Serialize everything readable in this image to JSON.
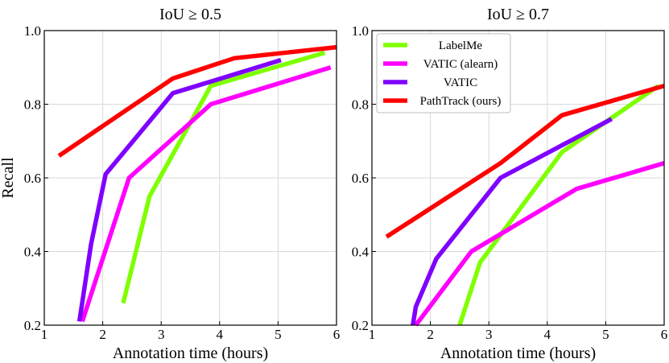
{
  "chart_data": [
    {
      "type": "line",
      "title": "IoU  ≥  0.5",
      "xlabel": "Annotation time (hours)",
      "ylabel": "Recall",
      "xlim": [
        1,
        6
      ],
      "ylim": [
        0.2,
        1.0
      ],
      "xticks": [
        "1",
        "2",
        "3",
        "4",
        "5",
        "6"
      ],
      "yticks": [
        "0.2",
        "0.4",
        "0.6",
        "0.8",
        "1.0"
      ],
      "grid": true,
      "series": [
        {
          "name": "LabelMe",
          "color": "#7fff00",
          "x": [
            2.35,
            2.8,
            3.85,
            5.8
          ],
          "y": [
            0.26,
            0.55,
            0.85,
            0.94
          ]
        },
        {
          "name": "VATIC (alearn)",
          "color": "#ff00ff",
          "x": [
            1.65,
            2.45,
            3.85,
            5.9
          ],
          "y": [
            0.21,
            0.6,
            0.8,
            0.9
          ]
        },
        {
          "name": "VATIC",
          "color": "#7f00ff",
          "x": [
            1.6,
            1.8,
            2.05,
            3.2,
            5.05
          ],
          "y": [
            0.21,
            0.42,
            0.61,
            0.83,
            0.92
          ]
        },
        {
          "name": "PathTrack (ours)",
          "color": "#ff0000",
          "x": [
            1.25,
            3.2,
            4.25,
            6.0
          ],
          "y": [
            0.66,
            0.87,
            0.925,
            0.955
          ]
        }
      ]
    },
    {
      "type": "line",
      "title": "IoU  ≥  0.7",
      "xlabel": "Annotation time (hours)",
      "ylabel": "",
      "xlim": [
        1,
        6
      ],
      "ylim": [
        0.2,
        1.0
      ],
      "xticks": [
        "1",
        "2",
        "3",
        "4",
        "5",
        "6"
      ],
      "yticks": [
        "0.2",
        "0.4",
        "0.6",
        "0.8",
        "1.0"
      ],
      "grid": true,
      "legend": "top-left",
      "series": [
        {
          "name": "LabelMe",
          "color": "#7fff00",
          "x": [
            2.5,
            2.85,
            4.25,
            5.9
          ],
          "y": [
            0.2,
            0.37,
            0.67,
            0.85
          ]
        },
        {
          "name": "VATIC (alearn)",
          "color": "#ff00ff",
          "x": [
            1.75,
            2.7,
            4.5,
            6.0
          ],
          "y": [
            0.2,
            0.4,
            0.57,
            0.64
          ]
        },
        {
          "name": "VATIC",
          "color": "#7f00ff",
          "x": [
            1.7,
            1.75,
            2.1,
            3.2,
            5.1
          ],
          "y": [
            0.2,
            0.25,
            0.38,
            0.6,
            0.76
          ]
        },
        {
          "name": "PathTrack (ours)",
          "color": "#ff0000",
          "x": [
            1.25,
            3.2,
            4.25,
            6.0
          ],
          "y": [
            0.44,
            0.64,
            0.77,
            0.85
          ]
        }
      ]
    }
  ]
}
